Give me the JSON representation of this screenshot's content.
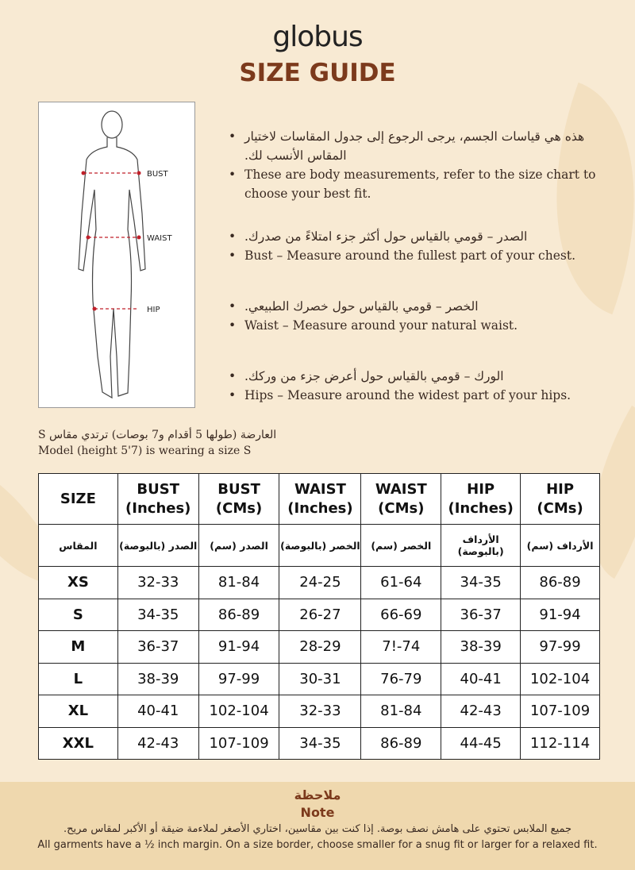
{
  "brand": "globus",
  "title": "SIZE GUIDE",
  "figure": {
    "labels": {
      "bust": "BUST",
      "waist": "WAIST",
      "hip": "HIP"
    }
  },
  "bullets": [
    {
      "ar": "هذه هي قياسات الجسم، يرجى الرجوع إلى جدول المقاسات لاختيار المقاس الأنسب لك.",
      "en": "These are body measurements, refer to the size chart to choose your best fit."
    },
    {
      "ar": "الصدر – قومي بالقياس حول أكثر جزء امتلاءً من صدرك.",
      "en": "Bust – Measure around the fullest part of your chest."
    },
    {
      "ar": "الخصر – قومي بالقياس حول خصرك الطبيعي.",
      "en": "Waist – Measure around your natural waist."
    },
    {
      "ar": "الورك – قومي بالقياس حول أعرض جزء من وركك.",
      "en": "Hips – Measure around the widest part of your hips."
    }
  ],
  "model": {
    "ar": "العارضة (طولها 5 أقدام و7 بوصات) ترتدي مقاس S",
    "en": "Model (height 5'7) is wearing a size S"
  },
  "table": {
    "headers": [
      [
        "SIZE",
        ""
      ],
      [
        "BUST",
        "(Inches)"
      ],
      [
        "BUST",
        "(CMs)"
      ],
      [
        "WAIST",
        "(Inches)"
      ],
      [
        "WAIST",
        "(CMs)"
      ],
      [
        "HIP",
        "(Inches)"
      ],
      [
        "HIP",
        "(CMs)"
      ]
    ],
    "headers_ar": [
      "المقاس",
      "الصدر (بالبوصة)",
      "الصدر (سم)",
      "الخصر (بالبوصة)",
      "الخصر (سم)",
      "الأرداف (بالبوصة)",
      "الأرداف (سم)"
    ],
    "rows": [
      [
        "XS",
        "32-33",
        "81-84",
        "24-25",
        "61-64",
        "34-35",
        "86-89"
      ],
      [
        "S",
        "34-35",
        "86-89",
        "26-27",
        "66-69",
        "36-37",
        "91-94"
      ],
      [
        "M",
        "36-37",
        "91-94",
        "28-29",
        "7!-74",
        "38-39",
        "97-99"
      ],
      [
        "L",
        "38-39",
        "97-99",
        "30-31",
        "76-79",
        "40-41",
        "102-104"
      ],
      [
        "XL",
        "40-41",
        "102-104",
        "32-33",
        "81-84",
        "42-43",
        "107-109"
      ],
      [
        "XXL",
        "42-43",
        "107-109",
        "34-35",
        "86-89",
        "44-45",
        "112-114"
      ]
    ]
  },
  "note": {
    "title_ar": "ملاحظة",
    "title": "Note",
    "text_ar": "جميع الملابس تحتوي على هامش نصف بوصة. إذا كنت بين مقاسين، اختاري الأصغر لملاءمة ضيقة أو الأكبر لمقاس مريح.",
    "text": "All garments have a ½ inch margin. On a size border, choose smaller for a snug fit or larger for a relaxed fit."
  }
}
